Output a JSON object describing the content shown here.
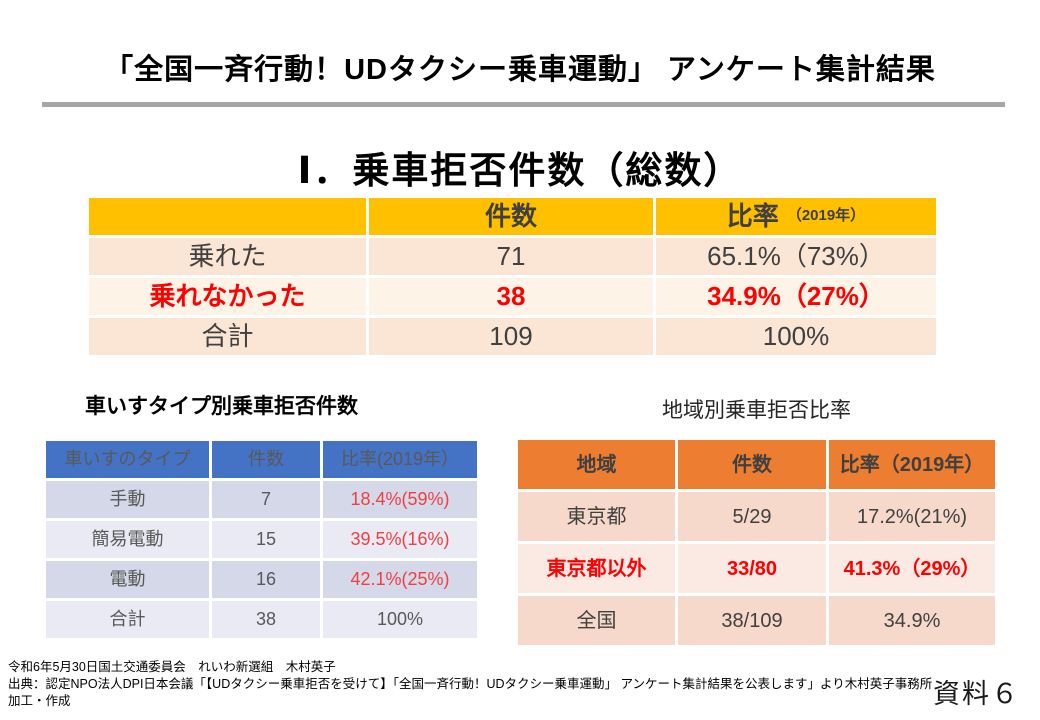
{
  "page": {
    "title": "「全国一斉行動！UDタクシー乗車運動」 アンケート集計結果",
    "section_title": "Ⅰ．乗車拒否件数（総数）",
    "doc_label": "資料６"
  },
  "main_table": {
    "headers": [
      "",
      "件数",
      "比率"
    ],
    "header_note": "（2019年）",
    "rows": [
      {
        "label": "乗れた",
        "count": "71",
        "ratio": "65.1%（73%）"
      },
      {
        "label": "乗れなかった",
        "count": "38",
        "ratio": "34.9%（27%）"
      },
      {
        "label": "合計",
        "count": "109",
        "ratio": "100%"
      }
    ]
  },
  "wheelchair_table": {
    "heading": "車いすタイプ別乗車拒否件数",
    "headers": [
      "車いすのタイプ",
      "件数",
      "比率(2019年）"
    ],
    "rows": [
      {
        "label": "手動",
        "count": "7",
        "ratio": "18.4%(59%)"
      },
      {
        "label": "簡易電動",
        "count": "15",
        "ratio": "39.5%(16%)"
      },
      {
        "label": "電動",
        "count": "16",
        "ratio": "42.1%(25%)"
      },
      {
        "label": "合計",
        "count": "38",
        "ratio": "100%"
      }
    ]
  },
  "region_table": {
    "heading": "地域別乗車拒否比率",
    "headers": [
      "地域",
      "件数",
      "比率（2019年）"
    ],
    "rows": [
      {
        "label": "東京都",
        "count": "5/29",
        "ratio": "17.2%(21%)"
      },
      {
        "label": "東京都以外",
        "count": "33/80",
        "ratio": "41.3%（29%）"
      },
      {
        "label": "全国",
        "count": "38/109",
        "ratio": "34.9%"
      }
    ]
  },
  "footer": {
    "line1": "令和6年5月30日国土交通委員会　れいわ新選組　木村英子",
    "line2": "出典：認定NPO法人DPI日本会議「【UDタクシー乗車拒否を受けて】「全国一斉行動！UDタクシー乗車運動」 アンケート集計結果を公表します」より木村英子事務所",
    "line3": "加工・作成"
  },
  "colors": {
    "gold_header": "#FFC000",
    "blue_header": "#4472C4",
    "orange_header": "#ED7D31",
    "highlight_red": "#FF0000",
    "soft_red": "#EF4040",
    "divider_gray": "#A6A6A6",
    "peach_row": "#FBE5D5",
    "cream_row": "#FDF3E6",
    "lavender_row": "#D4D8E8",
    "lavender_light_row": "#E9EAF3",
    "salmon_row": "#F6D9CB",
    "blush_row": "#FBEAE3",
    "body_text": "#404040"
  }
}
